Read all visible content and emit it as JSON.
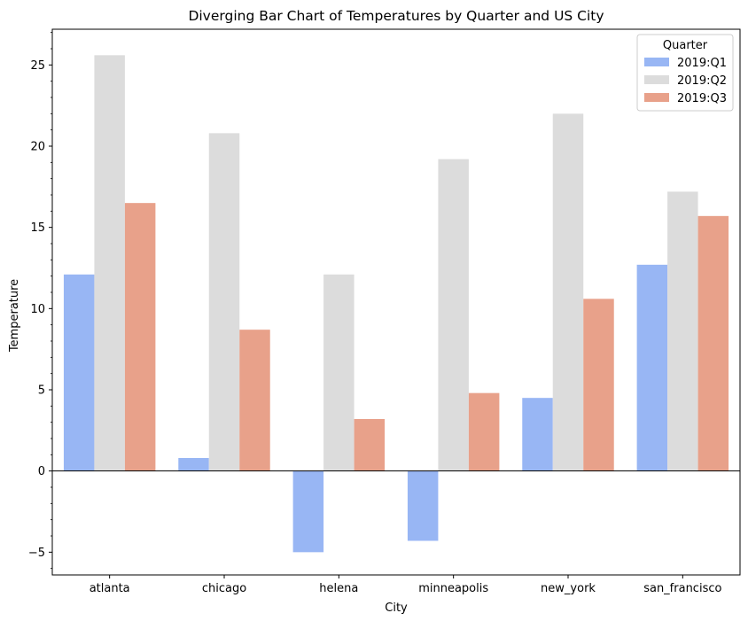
{
  "chart_data": {
    "type": "bar",
    "title": "Diverging Bar Chart of Temperatures by Quarter and US City",
    "xlabel": "City",
    "ylabel": "Temperature",
    "categories": [
      "atlanta",
      "chicago",
      "helena",
      "minneapolis",
      "new_york",
      "san_francisco"
    ],
    "series": [
      {
        "name": "2019:Q1",
        "color": "#98b6f4",
        "values": [
          12.1,
          0.8,
          -5.0,
          -4.3,
          4.5,
          12.7
        ]
      },
      {
        "name": "2019:Q2",
        "color": "#dcdcdc",
        "values": [
          25.6,
          20.8,
          12.1,
          19.2,
          22.0,
          17.2
        ]
      },
      {
        "name": "2019:Q3",
        "color": "#e8a18a",
        "values": [
          16.5,
          8.7,
          3.2,
          4.8,
          10.6,
          15.7
        ]
      }
    ],
    "ylim": [
      -6.4,
      27.2
    ],
    "yticks": [
      -5,
      0,
      5,
      10,
      15,
      20,
      25
    ],
    "ytick_labels": [
      "−5",
      "0",
      "5",
      "10",
      "15",
      "20",
      "25"
    ],
    "zero_line": true,
    "grid": false,
    "legend": {
      "title": "Quarter",
      "position": "top-right"
    }
  }
}
